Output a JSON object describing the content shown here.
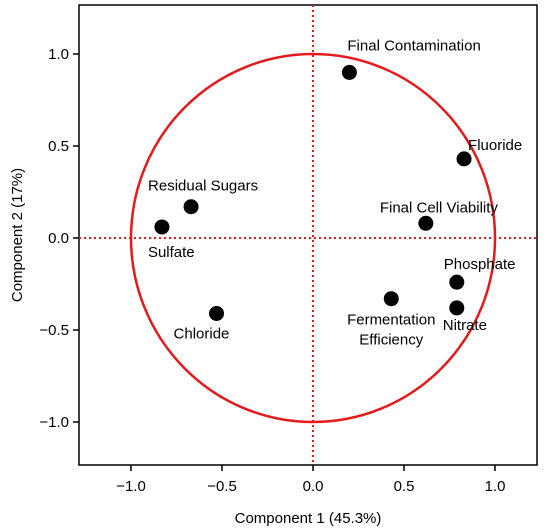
{
  "chart_data": {
    "type": "scatter",
    "xlabel": "Component 1 (45.3%)",
    "ylabel": "Component 2 (17%)",
    "xlim": [
      -1.25,
      1.25
    ],
    "ylim": [
      -1.25,
      1.25
    ],
    "x_ticks": [
      -1.0,
      -0.5,
      0.0,
      0.5,
      1.0
    ],
    "x_tick_labels": [
      "−1.0",
      "−0.5",
      "0.0",
      "0.5",
      "1.0"
    ],
    "y_ticks": [
      1.0,
      0.5,
      0.0,
      -0.5,
      -1.0
    ],
    "y_tick_labels": [
      "1.0",
      "0.5",
      "0.0",
      "−0.5",
      "−1.0"
    ],
    "grid": false,
    "reference_lines": {
      "x": 0,
      "y": 0,
      "style": "dotted",
      "color": "#e41a1c"
    },
    "unit_circle": {
      "radius": 1,
      "color": "#e41a1c"
    },
    "points": [
      {
        "label": "Final Contamination",
        "x": 0.2,
        "y": 0.9
      },
      {
        "label": "Fluoride",
        "x": 0.83,
        "y": 0.43
      },
      {
        "label": "Final Cell Viability",
        "x": 0.62,
        "y": 0.08
      },
      {
        "label": "Phosphate",
        "x": 0.79,
        "y": -0.24
      },
      {
        "label": "Nitrate",
        "x": 0.79,
        "y": -0.38
      },
      {
        "label": "Fermentation Efficiency",
        "x": 0.43,
        "y": -0.33
      },
      {
        "label": "Residual Sugars",
        "x": -0.67,
        "y": 0.17
      },
      {
        "label": "Sulfate",
        "x": -0.83,
        "y": 0.06
      },
      {
        "label": "Chloride",
        "x": -0.53,
        "y": -0.41
      }
    ]
  },
  "colors": {
    "reference": "#e41a1c",
    "point": "#000000",
    "axes": "#000000"
  }
}
